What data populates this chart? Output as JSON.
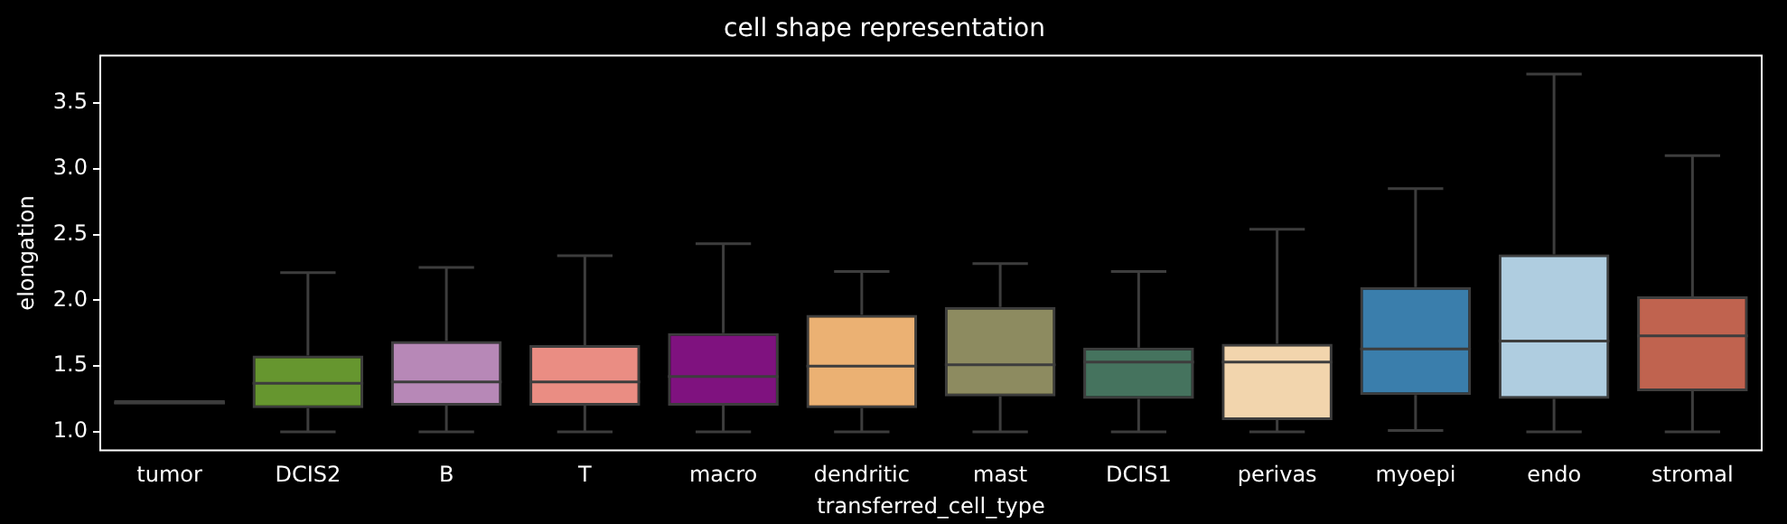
{
  "chart_data": {
    "type": "box",
    "title": "cell shape representation",
    "xlabel": "transferred_cell_type",
    "ylabel": "elongation",
    "categories": [
      "tumor",
      "DCIS2",
      "B",
      "T",
      "macro",
      "dendritic",
      "mast",
      "DCIS1",
      "perivas",
      "myoepi",
      "endo",
      "stromal"
    ],
    "colors": [
      "#2e2e2e",
      "#66962f",
      "#b788b7",
      "#ea8d83",
      "#7f127f",
      "#ebb173",
      "#8d8b60",
      "#45735e",
      "#f2d5ad",
      "#3a7eac",
      "#afcde0",
      "#c0634f"
    ],
    "boxes": [
      {
        "low": 1.21,
        "q1": 1.21,
        "median": 1.22,
        "q3": 1.24,
        "high": 1.24
      },
      {
        "low": 1.0,
        "q1": 1.18,
        "median": 1.37,
        "q3": 1.58,
        "high": 2.21
      },
      {
        "low": 1.0,
        "q1": 1.2,
        "median": 1.38,
        "q3": 1.69,
        "high": 2.25
      },
      {
        "low": 1.0,
        "q1": 1.2,
        "median": 1.38,
        "q3": 1.66,
        "high": 2.34
      },
      {
        "low": 1.0,
        "q1": 1.2,
        "median": 1.42,
        "q3": 1.75,
        "high": 2.43
      },
      {
        "low": 1.0,
        "q1": 1.18,
        "median": 1.5,
        "q3": 1.89,
        "high": 2.22
      },
      {
        "low": 1.0,
        "q1": 1.27,
        "median": 1.51,
        "q3": 1.95,
        "high": 2.28
      },
      {
        "low": 1.0,
        "q1": 1.25,
        "median": 1.53,
        "q3": 1.64,
        "high": 2.22
      },
      {
        "low": 1.0,
        "q1": 1.09,
        "median": 1.53,
        "q3": 1.67,
        "high": 2.54
      },
      {
        "low": 1.01,
        "q1": 1.28,
        "median": 1.63,
        "q3": 2.1,
        "high": 2.85
      },
      {
        "low": 1.0,
        "q1": 1.25,
        "median": 1.69,
        "q3": 2.35,
        "high": 3.72
      },
      {
        "low": 1.0,
        "q1": 1.31,
        "median": 1.73,
        "q3": 2.03,
        "high": 3.1
      }
    ],
    "ylim": [
      0.86,
      3.86
    ],
    "yticks": [
      {
        "value": 1,
        "label": "1.0"
      },
      1.5,
      {
        "value": 2,
        "label": "2.0"
      },
      2.5,
      {
        "value": 3,
        "label": "3.0"
      },
      3.5
    ],
    "grid": false,
    "legend": false
  }
}
